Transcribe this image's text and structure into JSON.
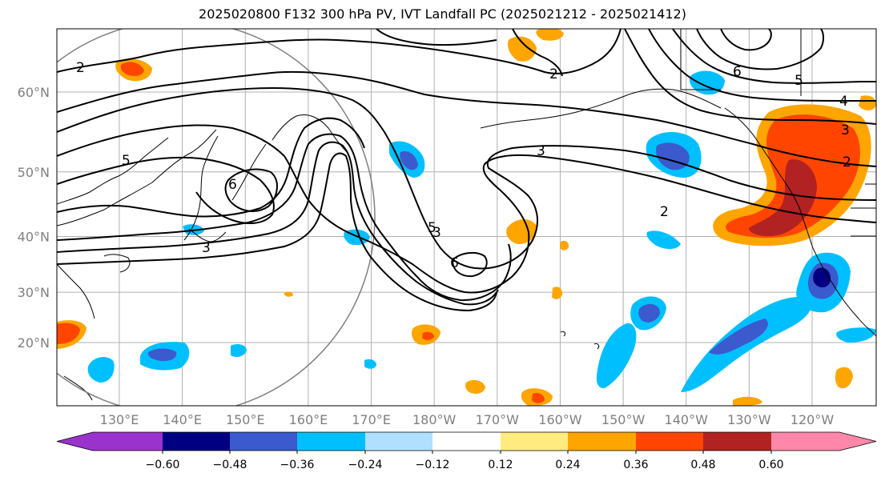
{
  "title": "2025020800 F132 300 hPa PV, IVT Landfall PC (2025021212 - 2025021412)",
  "lat_ticks": [
    {
      "label": "60°N",
      "lat": 60
    },
    {
      "label": "50°N",
      "lat": 50
    },
    {
      "label": "40°N",
      "lat": 40
    },
    {
      "label": "30°N",
      "lat": 30
    },
    {
      "label": "20°N",
      "lat": 20
    }
  ],
  "lon_ticks": [
    {
      "label": "130°E",
      "lon": 130
    },
    {
      "label": "140°E",
      "lon": 140
    },
    {
      "label": "150°E",
      "lon": 150
    },
    {
      "label": "160°E",
      "lon": 160
    },
    {
      "label": "170°E",
      "lon": 170
    },
    {
      "label": "180°W",
      "lon": 180
    },
    {
      "label": "170°W",
      "lon": 190
    },
    {
      "label": "160°W",
      "lon": 200
    },
    {
      "label": "150°W",
      "lon": 210
    },
    {
      "label": "140°W",
      "lon": 220
    },
    {
      "label": "130°W",
      "lon": 230
    },
    {
      "label": "120°W",
      "lon": 240
    }
  ],
  "colorbar": {
    "colors": [
      "#9933cc",
      "#000080",
      "#3a5acd",
      "#00bfff",
      "#b0e0ff",
      "#ffffff",
      "#ffeb80",
      "#ffa500",
      "#ff4500",
      "#b22222",
      "#ff88aa"
    ],
    "tick_labels": [
      "-0.60",
      "-0.48",
      "-0.36",
      "-0.24",
      "-0.12",
      "0.12",
      "0.24",
      "0.36",
      "0.48",
      "0.60"
    ]
  },
  "contour_labels": [
    "2",
    "5",
    "6",
    "3",
    "5",
    "6",
    "3",
    "2",
    "6",
    "5",
    "4",
    "3",
    "2",
    "2",
    "3"
  ]
}
